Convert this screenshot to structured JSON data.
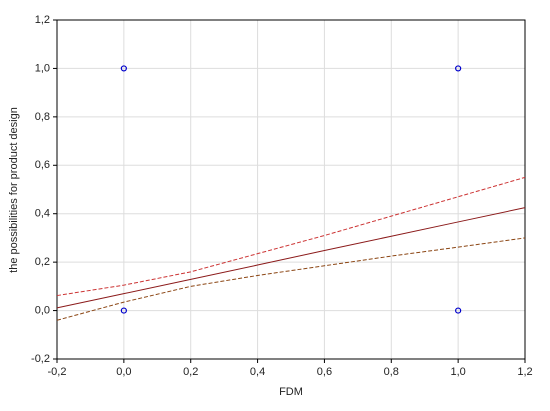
{
  "chart_data": {
    "type": "scatter",
    "x_label": "FDM",
    "y_label": "the possibilities for product design",
    "xlim": [
      -0.2,
      1.2
    ],
    "xticks": [
      {
        "value": -0.2,
        "label": "-0,2"
      },
      {
        "value": 0,
        "label": "0,0"
      },
      {
        "value": 0.2,
        "label": "0,2"
      },
      {
        "value": 0.4,
        "label": "0,4"
      },
      {
        "value": 0.6,
        "label": "0,6"
      },
      {
        "value": 0.8,
        "label": "0,8"
      },
      {
        "value": 1.0,
        "label": "1,0"
      },
      {
        "value": 1.2,
        "label": "1,2"
      }
    ],
    "ylim": [
      -0.2,
      1.2
    ],
    "yticks": [
      {
        "value": -0.2,
        "label": "-0,2"
      },
      {
        "value": 0,
        "label": "0,0"
      },
      {
        "value": 0.2,
        "label": "0,2"
      },
      {
        "value": 0.4,
        "label": "0,4"
      },
      {
        "value": 0.6,
        "label": "0,6"
      },
      {
        "value": 0.8,
        "label": "0,8"
      },
      {
        "value": 1.0,
        "label": "1,0"
      },
      {
        "value": 1.2,
        "label": "1,2"
      }
    ],
    "grid": true,
    "series": [
      {
        "type": "scatter",
        "color": "#0000cc",
        "x": [
          0,
          0,
          1,
          1
        ],
        "values": [
          1,
          0,
          1,
          0
        ]
      },
      {
        "type": "line",
        "color": "#8b1a1a",
        "dashed": false,
        "x": [
          -0.2,
          0,
          0.2,
          0.4,
          0.6,
          0.8,
          1.0,
          1.2
        ],
        "values": [
          0.011,
          0.07,
          0.129,
          0.188,
          0.248,
          0.307,
          0.366,
          0.425
        ]
      },
      {
        "type": "line",
        "color": "#cc3333",
        "dashed": true,
        "x": [
          -0.2,
          0,
          0.2,
          0.4,
          0.6,
          0.8,
          1.0,
          1.2
        ],
        "values": [
          0.062,
          0.105,
          0.16,
          0.235,
          0.31,
          0.39,
          0.47,
          0.55
        ]
      },
      {
        "type": "line",
        "color": "#8b4513",
        "dashed": true,
        "x": [
          -0.2,
          0,
          0.2,
          0.4,
          0.6,
          0.8,
          1.0,
          1.2
        ],
        "values": [
          -0.04,
          0.035,
          0.1,
          0.145,
          0.185,
          0.225,
          0.262,
          0.3
        ]
      }
    ]
  }
}
